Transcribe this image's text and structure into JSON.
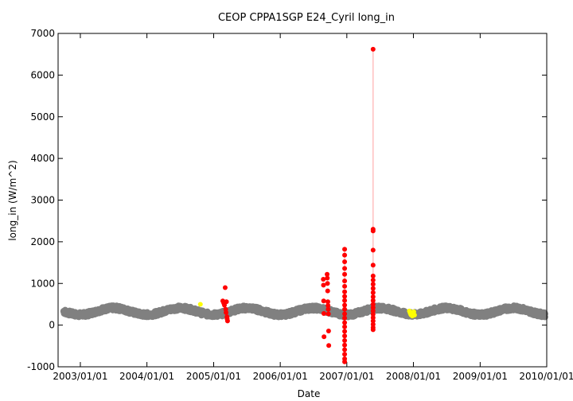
{
  "chart_data": {
    "type": "scatter",
    "title": "CEOP CPPA1SGP E24_Cyril  long_in",
    "xlabel": "Date",
    "ylabel": "long_in (W/m^2)",
    "ylim": [
      -1000,
      7000
    ],
    "yticks": [
      -1000,
      0,
      1000,
      2000,
      3000,
      4000,
      5000,
      6000,
      7000
    ],
    "xlim": [
      "2002-09-01",
      "2010-01-01"
    ],
    "xticks": [
      "2003/01/01",
      "2004/01/01",
      "2005/01/01",
      "2006/01/01",
      "2007/01/01",
      "2008/01/01",
      "2009/01/01",
      "2010/01/01"
    ],
    "grid": false,
    "colors": {
      "normal": "#808080",
      "flagged": "#ff0000",
      "suspect": "#ffff00",
      "line": "#ffb0b0"
    },
    "series": [
      {
        "name": "normal",
        "description": "continuous daily values with seasonal cycle",
        "range": [
          "2002-10-01",
          "2009-12-25"
        ],
        "mean": 330,
        "amplitude": 80,
        "peak_month": 7
      },
      {
        "name": "flagged",
        "points": [
          {
            "x": "2005-02-20",
            "y": 580
          },
          {
            "x": "2005-02-25",
            "y": 530
          },
          {
            "x": "2005-03-01",
            "y": 480
          },
          {
            "x": "2005-03-05",
            "y": 900
          },
          {
            "x": "2005-03-08",
            "y": 380
          },
          {
            "x": "2005-03-10",
            "y": 300
          },
          {
            "x": "2005-03-12",
            "y": 560
          },
          {
            "x": "2005-03-15",
            "y": 200
          },
          {
            "x": "2005-03-16",
            "y": 150
          },
          {
            "x": "2005-03-18",
            "y": 100
          },
          {
            "x": "2006-08-25",
            "y": 1100
          },
          {
            "x": "2006-08-26",
            "y": 960
          },
          {
            "x": "2006-08-27",
            "y": 580
          },
          {
            "x": "2006-08-28",
            "y": 280
          },
          {
            "x": "2006-08-29",
            "y": -280
          },
          {
            "x": "2006-09-15",
            "y": 1220
          },
          {
            "x": "2006-09-16",
            "y": 1130
          },
          {
            "x": "2006-09-17",
            "y": 1000
          },
          {
            "x": "2006-09-18",
            "y": 820
          },
          {
            "x": "2006-09-19",
            "y": 560
          },
          {
            "x": "2006-09-20",
            "y": 470
          },
          {
            "x": "2006-09-21",
            "y": 380
          },
          {
            "x": "2006-09-22",
            "y": 270
          },
          {
            "x": "2006-09-23",
            "y": -140
          },
          {
            "x": "2006-09-24",
            "y": -490
          },
          {
            "x": "2006-12-20",
            "y": 1820
          },
          {
            "x": "2006-12-20",
            "y": 1680
          },
          {
            "x": "2006-12-20",
            "y": 1520
          },
          {
            "x": "2006-12-20",
            "y": 1360
          },
          {
            "x": "2006-12-20",
            "y": 1220
          },
          {
            "x": "2006-12-20",
            "y": 1060
          },
          {
            "x": "2006-12-20",
            "y": 930
          },
          {
            "x": "2006-12-20",
            "y": 800
          },
          {
            "x": "2006-12-20",
            "y": 690
          },
          {
            "x": "2006-12-20",
            "y": 590
          },
          {
            "x": "2006-12-20",
            "y": 480
          },
          {
            "x": "2006-12-20",
            "y": 380
          },
          {
            "x": "2006-12-20",
            "y": 270
          },
          {
            "x": "2006-12-20",
            "y": 170
          },
          {
            "x": "2006-12-20",
            "y": 60
          },
          {
            "x": "2006-12-20",
            "y": -40
          },
          {
            "x": "2006-12-20",
            "y": -150
          },
          {
            "x": "2006-12-20",
            "y": -260
          },
          {
            "x": "2006-12-20",
            "y": -370
          },
          {
            "x": "2006-12-20",
            "y": -480
          },
          {
            "x": "2006-12-20",
            "y": -590
          },
          {
            "x": "2006-12-20",
            "y": -700
          },
          {
            "x": "2006-12-20",
            "y": -810
          },
          {
            "x": "2006-12-20",
            "y": -880
          },
          {
            "x": "2007-05-25",
            "y": 6620
          },
          {
            "x": "2007-05-25",
            "y": 2300
          },
          {
            "x": "2007-05-25",
            "y": 2260
          },
          {
            "x": "2007-05-25",
            "y": 1800
          },
          {
            "x": "2007-05-25",
            "y": 1440
          },
          {
            "x": "2007-05-25",
            "y": 1180
          },
          {
            "x": "2007-05-25",
            "y": 1080
          },
          {
            "x": "2007-05-25",
            "y": 980
          },
          {
            "x": "2007-05-25",
            "y": 880
          },
          {
            "x": "2007-05-25",
            "y": 780
          },
          {
            "x": "2007-05-25",
            "y": 680
          },
          {
            "x": "2007-05-25",
            "y": 590
          },
          {
            "x": "2007-05-25",
            "y": 500
          },
          {
            "x": "2007-05-25",
            "y": 420
          },
          {
            "x": "2007-05-25",
            "y": 340
          },
          {
            "x": "2007-05-25",
            "y": 260
          },
          {
            "x": "2007-05-25",
            "y": 180
          },
          {
            "x": "2007-05-25",
            "y": 100
          },
          {
            "x": "2007-05-25",
            "y": 20
          },
          {
            "x": "2007-05-25",
            "y": -60
          },
          {
            "x": "2007-05-25",
            "y": -110
          }
        ]
      },
      {
        "name": "suspect",
        "points": [
          {
            "x": "2004-10-20",
            "y": 500
          },
          {
            "x": "2007-12-10",
            "y": 340
          },
          {
            "x": "2007-12-14",
            "y": 290
          },
          {
            "x": "2007-12-18",
            "y": 250
          },
          {
            "x": "2007-12-22",
            "y": 300
          },
          {
            "x": "2007-12-26",
            "y": 220
          },
          {
            "x": "2007-12-30",
            "y": 260
          },
          {
            "x": "2008-01-03",
            "y": 320
          },
          {
            "x": "2008-01-07",
            "y": 240
          }
        ]
      }
    ],
    "spikes": [
      {
        "x": "2006-12-20",
        "y0": -880,
        "y1": 1820
      },
      {
        "x": "2007-05-25",
        "y0": -110,
        "y1": 6620
      }
    ]
  }
}
